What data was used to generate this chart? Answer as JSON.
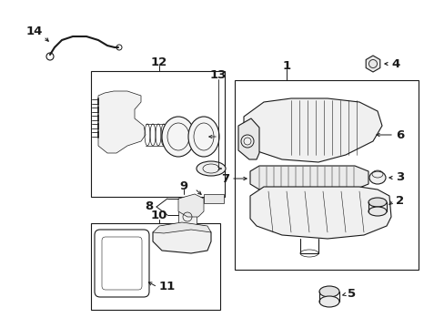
{
  "bg_color": "#ffffff",
  "line_color": "#1a1a1a",
  "fig_width": 4.89,
  "fig_height": 3.6,
  "dpi": 100,
  "label_fontsize": 9.5,
  "small_label_fontsize": 8.5
}
